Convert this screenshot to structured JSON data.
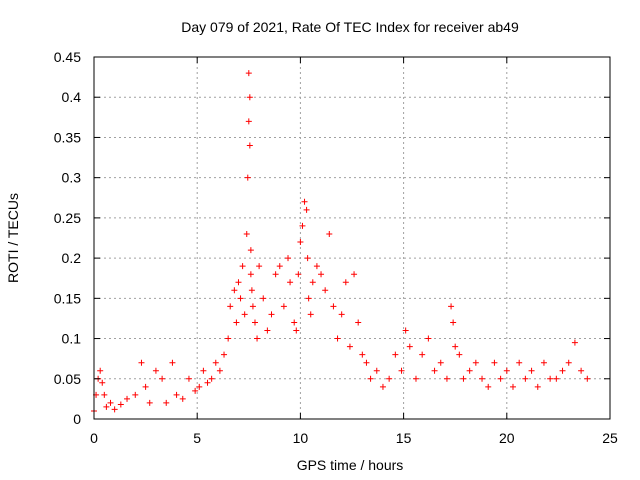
{
  "chart_data": {
    "type": "scatter",
    "title": "Day 079 of 2021, Rate Of TEC Index for receiver ab49",
    "xlabel": "GPS time / hours",
    "ylabel": "ROTI / TECUs",
    "xlim": [
      0,
      25
    ],
    "ylim": [
      0,
      0.45
    ],
    "xticks": [
      "0",
      "5",
      "10",
      "15",
      "20",
      "25"
    ],
    "yticks": [
      "0",
      "0.05",
      "0.1",
      "0.15",
      "0.2",
      "0.25",
      "0.3",
      "0.35",
      "0.4",
      "0.45"
    ],
    "grid": true,
    "marker": "+",
    "color": "#ff0000",
    "series": [
      {
        "x": [
          0.0,
          0.1,
          0.2,
          0.3,
          0.4,
          0.5,
          0.6,
          0.8,
          1.0,
          1.3,
          1.6,
          2.0,
          2.3,
          2.5,
          2.7,
          3.0,
          3.3,
          3.5,
          3.8,
          4.0,
          4.3,
          4.6,
          4.9,
          5.1,
          5.3,
          5.5,
          5.7,
          5.9,
          6.1,
          6.3,
          6.5,
          6.6,
          6.8,
          6.9,
          7.0,
          7.1,
          7.2,
          7.3,
          7.4,
          7.45,
          7.5,
          7.5,
          7.55,
          7.55,
          7.6,
          7.6,
          7.65,
          7.7,
          7.8,
          7.9,
          8.0,
          8.2,
          8.4,
          8.6,
          8.8,
          9.0,
          9.2,
          9.4,
          9.5,
          9.7,
          9.8,
          9.9,
          10.0,
          10.1,
          10.2,
          10.3,
          10.35,
          10.4,
          10.5,
          10.6,
          10.8,
          11.0,
          11.2,
          11.4,
          11.6,
          11.8,
          12.0,
          12.2,
          12.4,
          12.6,
          12.8,
          13.0,
          13.2,
          13.4,
          13.7,
          14.0,
          14.3,
          14.6,
          14.9,
          15.1,
          15.3,
          15.6,
          15.9,
          16.2,
          16.5,
          16.8,
          17.1,
          17.3,
          17.4,
          17.5,
          17.7,
          17.9,
          18.2,
          18.5,
          18.8,
          19.1,
          19.4,
          19.7,
          20.0,
          20.3,
          20.6,
          20.9,
          21.2,
          21.5,
          21.8,
          22.1,
          22.4,
          22.7,
          23.0,
          23.3,
          23.6,
          23.9
        ],
        "y": [
          0.01,
          0.03,
          0.05,
          0.06,
          0.045,
          0.03,
          0.015,
          0.02,
          0.012,
          0.018,
          0.025,
          0.03,
          0.07,
          0.04,
          0.02,
          0.06,
          0.05,
          0.02,
          0.07,
          0.03,
          0.025,
          0.05,
          0.035,
          0.04,
          0.06,
          0.045,
          0.05,
          0.07,
          0.06,
          0.08,
          0.1,
          0.14,
          0.16,
          0.12,
          0.17,
          0.15,
          0.19,
          0.13,
          0.23,
          0.3,
          0.37,
          0.43,
          0.4,
          0.34,
          0.21,
          0.18,
          0.16,
          0.14,
          0.12,
          0.1,
          0.19,
          0.15,
          0.11,
          0.13,
          0.18,
          0.19,
          0.14,
          0.2,
          0.17,
          0.12,
          0.11,
          0.18,
          0.22,
          0.24,
          0.27,
          0.26,
          0.2,
          0.15,
          0.13,
          0.17,
          0.19,
          0.18,
          0.16,
          0.23,
          0.14,
          0.1,
          0.13,
          0.17,
          0.09,
          0.18,
          0.12,
          0.08,
          0.07,
          0.05,
          0.06,
          0.04,
          0.05,
          0.08,
          0.06,
          0.11,
          0.09,
          0.05,
          0.08,
          0.1,
          0.06,
          0.07,
          0.05,
          0.14,
          0.12,
          0.09,
          0.08,
          0.05,
          0.06,
          0.07,
          0.05,
          0.04,
          0.07,
          0.05,
          0.06,
          0.04,
          0.07,
          0.05,
          0.06,
          0.04,
          0.07,
          0.05,
          0.05,
          0.06,
          0.07,
          0.095,
          0.06,
          0.05
        ]
      }
    ]
  }
}
